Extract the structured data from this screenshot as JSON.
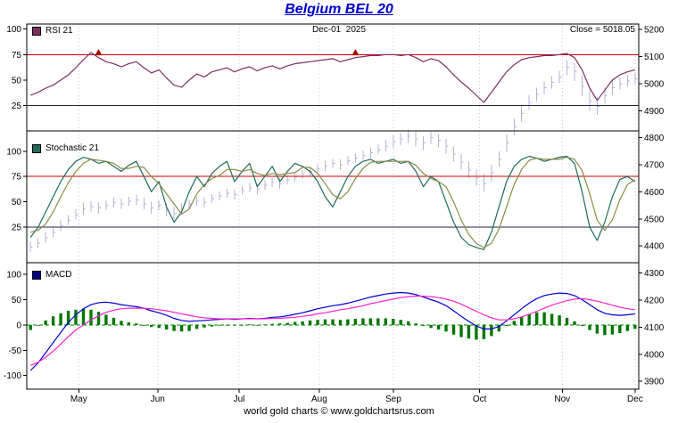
{
  "window": {
    "title": "Belgium BEL 20"
  },
  "header": {
    "date": "Dec-01  2025",
    "close": "Close = 5018.05"
  },
  "footer": {
    "caption": "world gold charts © www.goldchartsrus.com"
  },
  "legends": [
    {
      "label": "RSI 21",
      "color": "#7b2f5f"
    },
    {
      "label": "Stochastic 21",
      "color": "#1d6b5a"
    },
    {
      "label": "MACD",
      "color": "#000080"
    }
  ],
  "x_axis": {
    "labels": [
      "May",
      "Jun",
      "Jul",
      "Aug",
      "Sep",
      "Oct",
      "Nov",
      "Dec"
    ],
    "positions": [
      0.085,
      0.214,
      0.347,
      0.478,
      0.599,
      0.74,
      0.875,
      0.994
    ]
  },
  "chart_data": [
    {
      "id": "price",
      "type": "bar",
      "name": "Belgium BEL 20 daily high-low price bars",
      "axis": "right",
      "color": "#b3b3d9",
      "ylim": [
        3871,
        5220
      ],
      "yticks": [
        5200,
        5100,
        5000,
        4900,
        4800,
        4700,
        4600,
        4500,
        4400,
        4300,
        4200,
        4100,
        4000,
        3900
      ],
      "close_value": 5018.05,
      "high": [
        4415,
        4428,
        4452,
        4470,
        4495,
        4515,
        4535,
        4560,
        4565,
        4562,
        4568,
        4578,
        4575,
        4582,
        4590,
        4578,
        4562,
        4568,
        4555,
        4545,
        4558,
        4572,
        4582,
        4580,
        4592,
        4602,
        4612,
        4610,
        4622,
        4632,
        4630,
        4642,
        4652,
        4650,
        4662,
        4672,
        4682,
        4692,
        4702,
        4715,
        4722,
        4720,
        4732,
        4742,
        4752,
        4765,
        4775,
        4790,
        4808,
        4818,
        4830,
        4820,
        4805,
        4822,
        4812,
        4795,
        4768,
        4740,
        4712,
        4682,
        4665,
        4700,
        4750,
        4812,
        4872,
        4920,
        4958,
        4985,
        5008,
        5028,
        5048,
        5085,
        5075,
        5030,
        4975,
        4950,
        4985,
        5012,
        5022,
        5030,
        5040
      ],
      "low": [
        4378,
        4392,
        4412,
        4432,
        4455,
        4478,
        4498,
        4515,
        4528,
        4520,
        4532,
        4542,
        4538,
        4548,
        4550,
        4535,
        4520,
        4532,
        4510,
        4498,
        4520,
        4538,
        4548,
        4542,
        4558,
        4568,
        4578,
        4572,
        4588,
        4598,
        4592,
        4608,
        4618,
        4612,
        4628,
        4638,
        4648,
        4658,
        4668,
        4675,
        4688,
        4680,
        4698,
        4708,
        4718,
        4725,
        4738,
        4750,
        4762,
        4772,
        4780,
        4768,
        4755,
        4778,
        4765,
        4742,
        4712,
        4682,
        4650,
        4622,
        4600,
        4638,
        4692,
        4748,
        4808,
        4860,
        4902,
        4935,
        4962,
        4982,
        5002,
        5030,
        5010,
        4955,
        4900,
        4885,
        4925,
        4958,
        4978,
        4990,
        4998
      ],
      "close": [
        4395,
        4410,
        4430,
        4450,
        4475,
        4495,
        4515,
        4535,
        4545,
        4540,
        4550,
        4560,
        4555,
        4565,
        4570,
        4555,
        4540,
        4550,
        4530,
        4520,
        4540,
        4555,
        4565,
        4560,
        4575,
        4585,
        4595,
        4590,
        4605,
        4615,
        4610,
        4625,
        4635,
        4630,
        4645,
        4655,
        4665,
        4675,
        4685,
        4695,
        4705,
        4700,
        4715,
        4725,
        4735,
        4745,
        4755,
        4770,
        4785,
        4795,
        4805,
        4795,
        4780,
        4800,
        4790,
        4770,
        4740,
        4710,
        4680,
        4650,
        4630,
        4670,
        4720,
        4780,
        4840,
        4890,
        4930,
        4960,
        4985,
        5005,
        5025,
        5060,
        5045,
        4990,
        4935,
        4915,
        4955,
        4985,
        5000,
        5010,
        5018.05
      ]
    },
    {
      "id": "rsi",
      "type": "line",
      "name": "RSI 21",
      "ylim": [
        0,
        105
      ],
      "yticks": [
        100,
        75,
        50,
        25
      ],
      "hlines": [
        {
          "value": 75,
          "color": "#cc0000"
        },
        {
          "value": 25,
          "color": "#26264d"
        }
      ],
      "markers": [
        {
          "index": 9,
          "value": 76
        },
        {
          "index": 43,
          "value": 76
        }
      ],
      "series": [
        {
          "name": "RSI 21",
          "color": "#7b2f5f",
          "values": [
            35,
            38,
            42,
            45,
            50,
            55,
            62,
            70,
            77,
            72,
            68,
            66,
            63,
            66,
            68,
            62,
            57,
            60,
            52,
            45,
            43,
            50,
            56,
            53,
            58,
            60,
            62,
            58,
            61,
            63,
            59,
            62,
            64,
            61,
            64,
            66,
            67,
            68,
            69,
            70,
            71,
            68,
            70,
            72,
            73,
            74,
            74,
            75,
            75,
            74,
            75,
            72,
            68,
            71,
            69,
            63,
            55,
            48,
            42,
            35,
            28,
            38,
            48,
            58,
            65,
            70,
            72,
            73,
            74,
            74,
            75,
            76,
            72,
            60,
            42,
            30,
            40,
            50,
            55,
            58,
            60
          ]
        }
      ]
    },
    {
      "id": "stochastic",
      "type": "line",
      "name": "Stochastic 21",
      "ylim": [
        -10,
        120
      ],
      "yticks": [
        100,
        75,
        50,
        25
      ],
      "hlines": [
        {
          "value": 75,
          "color": "#cc0000"
        },
        {
          "value": 25,
          "color": "#26264d"
        }
      ],
      "series": [
        {
          "name": "Stochastic %K",
          "color": "#1d6b5a",
          "values": [
            15,
            25,
            40,
            55,
            70,
            82,
            90,
            94,
            92,
            88,
            90,
            85,
            80,
            86,
            90,
            75,
            60,
            70,
            45,
            30,
            40,
            60,
            75,
            65,
            78,
            85,
            90,
            70,
            80,
            88,
            65,
            75,
            85,
            70,
            80,
            88,
            85,
            80,
            70,
            55,
            45,
            60,
            75,
            85,
            90,
            92,
            88,
            90,
            92,
            88,
            90,
            80,
            65,
            75,
            70,
            50,
            30,
            15,
            8,
            5,
            3,
            20,
            45,
            70,
            85,
            92,
            95,
            93,
            90,
            92,
            94,
            95,
            88,
            60,
            25,
            12,
            30,
            55,
            72,
            75,
            70
          ]
        },
        {
          "name": "Stochastic %D",
          "color": "#8a8a46",
          "values": [
            20,
            22,
            28,
            40,
            55,
            69,
            80,
            88,
            92,
            91,
            90,
            88,
            83,
            83,
            85,
            84,
            75,
            68,
            58,
            48,
            38,
            43,
            58,
            67,
            73,
            76,
            82,
            82,
            80,
            82,
            78,
            76,
            78,
            77,
            78,
            79,
            84,
            84,
            78,
            68,
            57,
            53,
            60,
            73,
            83,
            89,
            90,
            90,
            90,
            90,
            90,
            86,
            78,
            73,
            70,
            65,
            50,
            32,
            18,
            9,
            5,
            9,
            23,
            45,
            67,
            82,
            91,
            93,
            92,
            92,
            92,
            94,
            92,
            81,
            58,
            32,
            22,
            32,
            52,
            67,
            72
          ]
        }
      ]
    },
    {
      "id": "macd",
      "type": "line",
      "name": "MACD",
      "ylim": [
        -127,
        123
      ],
      "yticks": [
        100,
        50,
        0,
        -50,
        -100
      ],
      "hlines": [
        {
          "value": 0,
          "color": "#008000",
          "dash": true
        }
      ],
      "histogram": {
        "name": "MACD histogram",
        "color": "#007700",
        "values": [
          -10,
          -1,
          9,
          17,
          23,
          28,
          30,
          32,
          30,
          26,
          20,
          14,
          8,
          5,
          3,
          0,
          -4,
          -6,
          -9,
          -12,
          -13,
          -12,
          -8,
          -5,
          -3,
          -1,
          0,
          -1,
          0,
          1,
          0,
          1,
          2,
          3,
          4,
          6,
          7,
          9,
          10,
          11,
          11,
          10,
          11,
          12,
          13,
          13,
          13,
          13,
          12,
          10,
          7,
          3,
          -2,
          -6,
          -9,
          -13,
          -19,
          -24,
          -27,
          -29,
          -28,
          -22,
          -13,
          -2,
          8,
          16,
          22,
          25,
          25,
          22,
          19,
          14,
          7,
          -2,
          -10,
          -17,
          -20,
          -19,
          -16,
          -12,
          -8
        ]
      },
      "series": [
        {
          "name": "MACD line",
          "color": "#0000cc",
          "values": [
            -90,
            -75,
            -55,
            -35,
            -15,
            5,
            20,
            32,
            40,
            44,
            45,
            43,
            40,
            38,
            36,
            33,
            28,
            24,
            19,
            13,
            9,
            7,
            8,
            9,
            10,
            11,
            12,
            11,
            12,
            13,
            12,
            13,
            15,
            16,
            18,
            21,
            24,
            28,
            32,
            35,
            38,
            40,
            43,
            47,
            51,
            55,
            58,
            61,
            63,
            64,
            63,
            60,
            55,
            50,
            45,
            38,
            28,
            17,
            7,
            -2,
            -8,
            -8,
            -3,
            8,
            20,
            32,
            43,
            52,
            58,
            61,
            63,
            62,
            58,
            50,
            40,
            30,
            23,
            20,
            19,
            20,
            22
          ]
        },
        {
          "name": "MACD signal",
          "color": "#ff22cc",
          "values": [
            -80,
            -74,
            -64,
            -52,
            -38,
            -23,
            -10,
            0,
            10,
            18,
            25,
            29,
            32,
            33,
            33,
            33,
            32,
            30,
            28,
            25,
            22,
            19,
            16,
            14,
            13,
            12,
            12,
            12,
            12,
            12,
            12,
            12,
            13,
            13,
            14,
            15,
            17,
            19,
            22,
            24,
            27,
            30,
            32,
            35,
            38,
            42,
            45,
            48,
            51,
            54,
            56,
            57,
            57,
            56,
            54,
            51,
            47,
            41,
            34,
            27,
            20,
            14,
            10,
            10,
            12,
            16,
            21,
            27,
            33,
            39,
            44,
            48,
            51,
            52,
            50,
            47,
            43,
            39,
            35,
            32,
            30
          ]
        }
      ]
    }
  ]
}
